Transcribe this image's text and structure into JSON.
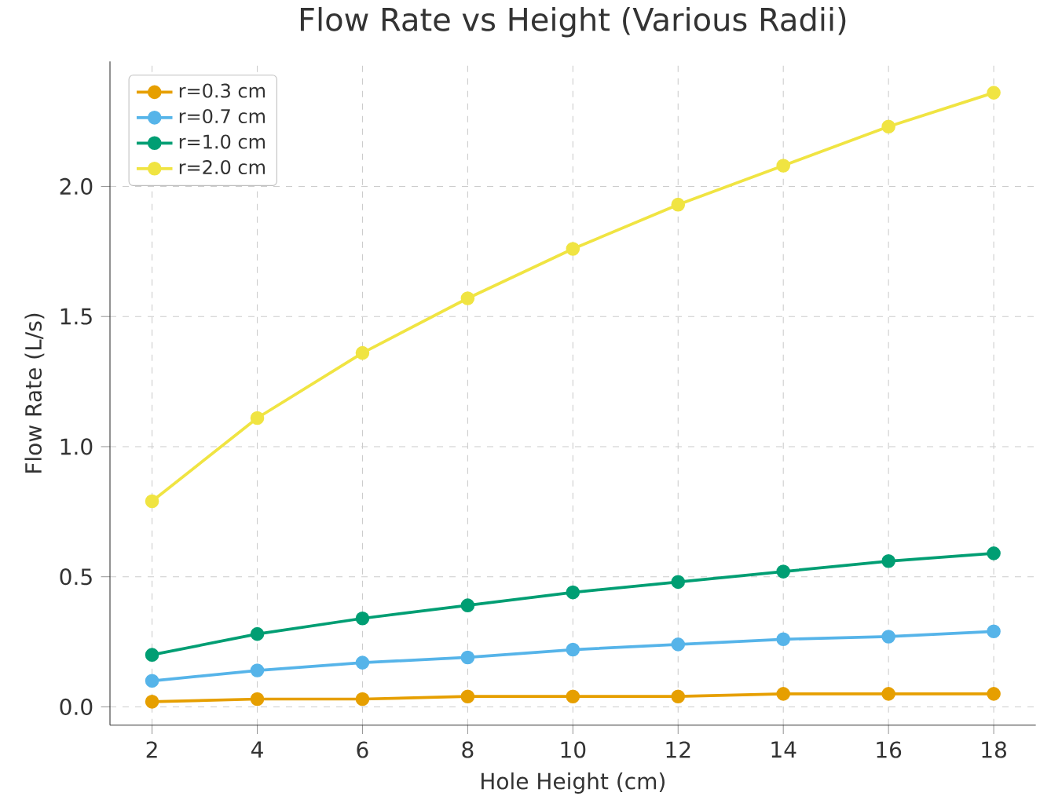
{
  "chart_data": {
    "type": "line",
    "title": "Flow Rate vs Height (Various Radii)",
    "xlabel": "Hole Height (cm)",
    "ylabel": "Flow Rate (L/s)",
    "x": [
      2,
      4,
      6,
      8,
      10,
      12,
      14,
      16,
      18
    ],
    "series": [
      {
        "name": "r=0.3 cm",
        "color": "#e69f00",
        "values": [
          0.02,
          0.03,
          0.03,
          0.04,
          0.04,
          0.04,
          0.05,
          0.05,
          0.05
        ]
      },
      {
        "name": "r=0.7 cm",
        "color": "#56b4e9",
        "values": [
          0.1,
          0.14,
          0.17,
          0.19,
          0.22,
          0.24,
          0.26,
          0.27,
          0.29
        ]
      },
      {
        "name": "r=1.0 cm",
        "color": "#009e73",
        "values": [
          0.2,
          0.28,
          0.34,
          0.39,
          0.44,
          0.48,
          0.52,
          0.56,
          0.59
        ]
      },
      {
        "name": "r=2.0 cm",
        "color": "#f0e442",
        "values": [
          0.79,
          1.11,
          1.36,
          1.57,
          1.76,
          1.93,
          2.08,
          2.23,
          2.36
        ]
      }
    ],
    "xlim": [
      1.2,
      18.8
    ],
    "ylim": [
      -0.07,
      2.48
    ],
    "xticks": [
      2,
      4,
      6,
      8,
      10,
      12,
      14,
      16,
      18
    ],
    "yticks": [
      {
        "value": 0,
        "label": "0.0"
      },
      0.5,
      {
        "value": 1,
        "label": "1.0"
      },
      1.5,
      {
        "value": 2,
        "label": "2.0"
      }
    ],
    "grid": true,
    "legend": "top left",
    "marker": "circle",
    "line_style": "solid"
  }
}
